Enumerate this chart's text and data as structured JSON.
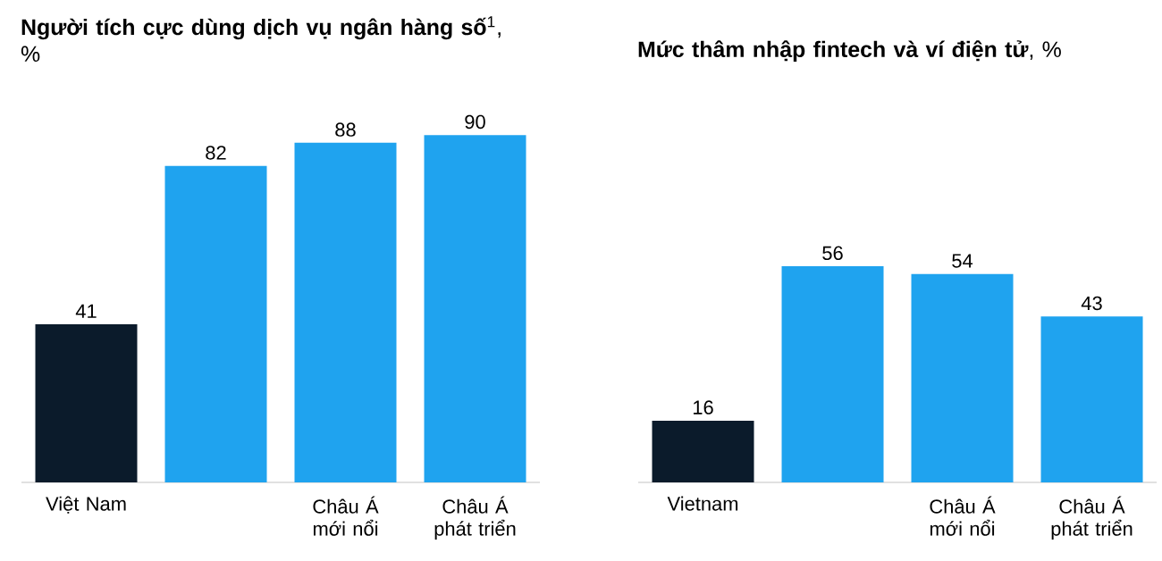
{
  "chart_data": [
    {
      "type": "bar",
      "title": "**Người tích cực dùng dịch vụ ngân hàng số**$^{1}$, %",
      "categories": [
        "Việt Nam",
        null,
        "Châu Á mới nổi",
        "Châu Á phát triển"
      ],
      "values": [
        41,
        82,
        88,
        90
      ],
      "colors": [
        "#0b1b2b",
        "#1fa3ef",
        "#1fa3ef",
        "#1fa3ef"
      ],
      "data_labels": true
    },
    {
      "type": "bar",
      "title": "**Mức thâm nhập fintech và ví điện tử**, %",
      "categories": [
        "Vietnam",
        null,
        "Châu Á mới nổi",
        "Châu Á phát triển"
      ],
      "values": [
        16,
        56,
        54,
        43
      ],
      "colors": [
        "#0b1b2b",
        "#1fa3ef",
        "#1fa3ef",
        "#1fa3ef"
      ],
      "data_labels": true
    }
  ]
}
